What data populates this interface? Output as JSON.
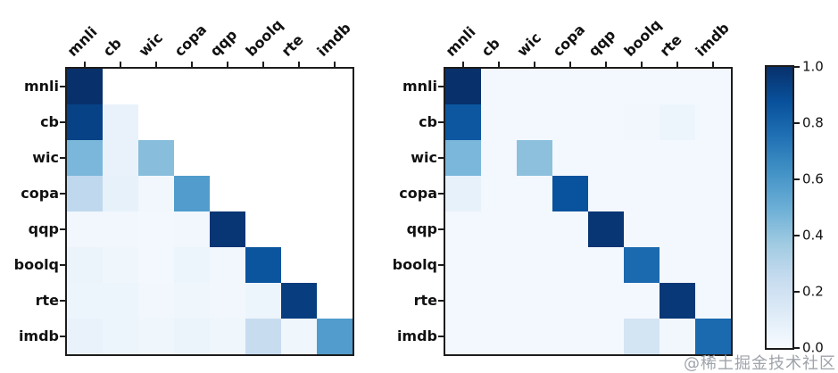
{
  "watermark": "@稀土掘金技术社区",
  "colors": {
    "colormap_anchors": [
      "#f7fbff",
      "#deebf7",
      "#c6dbef",
      "#9ecae1",
      "#6baed6",
      "#4292c6",
      "#2171b5",
      "#08519c",
      "#08306b"
    ],
    "masked_cell": "#ffffff",
    "axis": "#1c1c1c"
  },
  "chart_data": {
    "type": "heatmap",
    "title": "",
    "colormap": "Blues",
    "value_range": [
      0,
      1
    ],
    "labels": [
      "mnli",
      "cb",
      "wic",
      "copa",
      "qqp",
      "boolq",
      "rte",
      "imdb"
    ],
    "heatmaps": [
      {
        "name": "left",
        "masked_upper_triangle": true,
        "matrix": [
          [
            1.0,
            null,
            null,
            null,
            null,
            null,
            null,
            null
          ],
          [
            0.93,
            0.07,
            null,
            null,
            null,
            null,
            null,
            null
          ],
          [
            0.46,
            0.07,
            0.43,
            null,
            null,
            null,
            null,
            null
          ],
          [
            0.27,
            0.08,
            0.03,
            0.58,
            null,
            null,
            null,
            null
          ],
          [
            0.03,
            0.03,
            0.02,
            0.03,
            0.98,
            null,
            null,
            null
          ],
          [
            0.06,
            0.04,
            0.02,
            0.05,
            0.03,
            0.86,
            null,
            null
          ],
          [
            0.05,
            0.05,
            0.03,
            0.04,
            0.03,
            0.05,
            0.95,
            null
          ],
          [
            0.07,
            0.05,
            0.04,
            0.06,
            0.04,
            0.24,
            0.04,
            0.58
          ]
        ]
      },
      {
        "name": "right",
        "masked_upper_triangle": false,
        "matrix": [
          [
            1.0,
            0.02,
            0.02,
            0.02,
            0.02,
            0.02,
            0.02,
            0.02
          ],
          [
            0.85,
            0.02,
            0.02,
            0.02,
            0.02,
            0.03,
            0.05,
            0.02
          ],
          [
            0.46,
            0.02,
            0.42,
            0.02,
            0.02,
            0.02,
            0.02,
            0.02
          ],
          [
            0.08,
            0.02,
            0.02,
            0.87,
            0.02,
            0.02,
            0.02,
            0.02
          ],
          [
            0.02,
            0.02,
            0.02,
            0.02,
            0.98,
            0.02,
            0.02,
            0.02
          ],
          [
            0.02,
            0.02,
            0.02,
            0.02,
            0.02,
            0.78,
            0.02,
            0.02
          ],
          [
            0.02,
            0.02,
            0.02,
            0.02,
            0.02,
            0.02,
            0.97,
            0.02
          ],
          [
            0.02,
            0.02,
            0.02,
            0.02,
            0.02,
            0.18,
            0.03,
            0.78
          ]
        ]
      }
    ],
    "colorbar": {
      "tick_labels": [
        "1.0",
        "0.8",
        "0.6",
        "0.4",
        "0.2",
        "0.0"
      ],
      "min": 0.0,
      "max": 1.0,
      "position": "right"
    }
  }
}
